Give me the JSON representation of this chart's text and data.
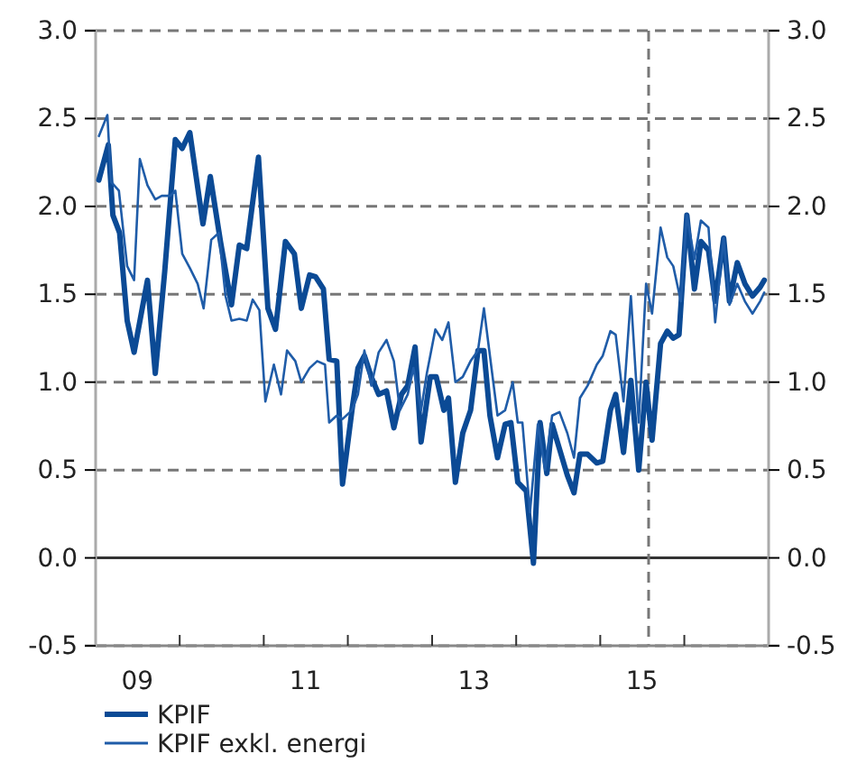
{
  "chart_data": {
    "type": "line",
    "xlim": [
      "2009-01-01",
      "2017-01-01"
    ],
    "xticks": [
      {
        "value": "2009-01-01",
        "label": null
      },
      {
        "value": "2009-07-01",
        "label": "09"
      },
      {
        "value": "2010-01-01",
        "label": null
      },
      {
        "value": "2011-01-01",
        "label": null
      },
      {
        "value": "2011-07-01",
        "label": "11"
      },
      {
        "value": "2012-01-01",
        "label": null
      },
      {
        "value": "2013-01-01",
        "label": null
      },
      {
        "value": "2013-07-01",
        "label": "13"
      },
      {
        "value": "2014-01-01",
        "label": null
      },
      {
        "value": "2015-01-01",
        "label": null
      },
      {
        "value": "2015-07-01",
        "label": "15"
      },
      {
        "value": "2016-01-01",
        "label": null
      },
      {
        "value": "2017-01-01",
        "label": null
      }
    ],
    "ylim": [
      -0.5,
      3
    ],
    "yticks": [
      {
        "value": -0.5,
        "label": "-0.5"
      },
      {
        "value": 0,
        "label": "0.0"
      },
      {
        "value": 0.5,
        "label": "0.5"
      },
      {
        "value": 1,
        "label": "1.0"
      },
      {
        "value": 1.5,
        "label": "1.5"
      },
      {
        "value": 2,
        "label": "2.0"
      },
      {
        "value": 2.5,
        "label": "2.5"
      },
      {
        "value": 3,
        "label": "3.0"
      }
    ],
    "y2lim": [
      -0.5,
      3
    ],
    "y2ticks": [
      {
        "value": -0.5,
        "label": "-0.5"
      },
      {
        "value": 0,
        "label": "0.0"
      },
      {
        "value": 0.5,
        "label": "0.5"
      },
      {
        "value": 1,
        "label": "1.0"
      },
      {
        "value": 1.5,
        "label": "1.5"
      },
      {
        "value": 2,
        "label": "2.0"
      },
      {
        "value": 2.5,
        "label": "2.5"
      },
      {
        "value": 3,
        "label": "3.0"
      }
    ],
    "grid": "y",
    "legend": "bottom left",
    "line_style": "solid",
    "ref_lines": [
      {
        "axis": "y",
        "value": 0,
        "color": "#333333",
        "line_style": "solid"
      },
      {
        "axis": "x",
        "value": "2015-07-30",
        "color": "#777777",
        "line_style": "dashed"
      }
    ],
    "series": [
      {
        "name": "KPIF",
        "color": "#0b4a95",
        "x": [
          "2009-01-15",
          "2009-02-25",
          "2009-03-17",
          "2009-04-15",
          "2009-05-18",
          "2009-06-17",
          "2009-08-14",
          "2009-09-17",
          "2009-10-28",
          "2009-12-13",
          "2010-01-12",
          "2010-02-14",
          "2010-04-12",
          "2010-05-14",
          "2010-06-27",
          "2010-08-14",
          "2010-09-17",
          "2010-10-19",
          "2010-12-09",
          "2011-01-19",
          "2011-02-21",
          "2011-04-05",
          "2011-05-14",
          "2011-06-13",
          "2011-07-19",
          "2011-08-14",
          "2011-09-17",
          "2011-10-12",
          "2011-11-14",
          "2011-12-09",
          "2012-01-19",
          "2012-02-14",
          "2012-03-13",
          "2012-04-12",
          "2012-05-14",
          "2012-06-17",
          "2012-07-19",
          "2012-08-21",
          "2012-09-17",
          "2012-10-19",
          "2012-11-14",
          "2012-12-24",
          "2013-01-19",
          "2013-02-21",
          "2013-03-13",
          "2013-04-12",
          "2013-05-14",
          "2013-06-17",
          "2013-07-19",
          "2013-08-14",
          "2013-09-09",
          "2013-10-12",
          "2013-11-14",
          "2013-12-09",
          "2014-01-08",
          "2014-02-14",
          "2014-03-17",
          "2014-04-15",
          "2014-05-14",
          "2014-06-06",
          "2014-07-08",
          "2014-08-11",
          "2014-09-09",
          "2014-10-05",
          "2014-11-07",
          "2014-12-17",
          "2015-01-12",
          "2015-02-14",
          "2015-03-09",
          "2015-04-12",
          "2015-05-14",
          "2015-06-17",
          "2015-07-19",
          "2015-08-14",
          "2015-09-20",
          "2015-10-19",
          "2015-11-14",
          "2015-12-09",
          "2016-01-12",
          "2016-02-14",
          "2016-03-13",
          "2016-04-15",
          "2016-05-14",
          "2016-06-20",
          "2016-07-15",
          "2016-08-18",
          "2016-09-20",
          "2016-10-23",
          "2016-11-25",
          "2016-12-13"
        ],
        "values": [
          2.15,
          2.35,
          1.95,
          1.85,
          1.35,
          1.17,
          1.58,
          1.05,
          1.63,
          2.38,
          2.33,
          2.42,
          1.9,
          2.17,
          1.8,
          1.44,
          1.78,
          1.76,
          2.28,
          1.42,
          1.3,
          1.8,
          1.73,
          1.42,
          1.61,
          1.6,
          1.53,
          1.13,
          1.12,
          0.42,
          0.84,
          1.08,
          1.15,
          1.03,
          0.93,
          0.95,
          0.74,
          0.93,
          0.98,
          1.2,
          0.66,
          1.03,
          1.03,
          0.84,
          0.91,
          0.43,
          0.71,
          0.84,
          1.18,
          1.18,
          0.81,
          0.57,
          0.76,
          0.77,
          0.43,
          0.38,
          -0.03,
          0.77,
          0.48,
          0.76,
          0.62,
          0.47,
          0.37,
          0.59,
          0.59,
          0.54,
          0.55,
          0.84,
          0.93,
          0.6,
          1.01,
          0.5,
          1,
          0.67,
          1.22,
          1.29,
          1.25,
          1.27,
          1.95,
          1.53,
          1.8,
          1.75,
          1.46,
          1.82,
          1.46,
          1.68,
          1.56,
          1.49,
          1.54,
          1.58
        ]
      },
      {
        "name": "KPIF exkl. energi",
        "color": "#1f5ca8",
        "x": [
          "2009-01-15",
          "2009-02-21",
          "2009-03-09",
          "2009-04-12",
          "2009-05-18",
          "2009-06-17",
          "2009-07-12",
          "2009-08-14",
          "2009-09-17",
          "2009-10-15",
          "2009-11-21",
          "2009-12-13",
          "2010-01-12",
          "2010-02-14",
          "2010-03-20",
          "2010-04-15",
          "2010-05-18",
          "2010-06-20",
          "2010-07-19",
          "2010-08-14",
          "2010-09-17",
          "2010-10-19",
          "2010-11-14",
          "2010-12-13",
          "2011-01-08",
          "2011-02-14",
          "2011-03-17",
          "2011-04-12",
          "2011-05-18",
          "2011-06-13",
          "2011-07-19",
          "2011-08-21",
          "2011-09-24",
          "2011-10-12",
          "2011-11-14",
          "2011-12-09",
          "2012-01-19",
          "2012-02-14",
          "2012-03-13",
          "2012-04-12",
          "2012-05-14",
          "2012-06-17",
          "2012-07-19",
          "2012-08-14",
          "2012-09-17",
          "2012-10-12",
          "2012-11-14",
          "2012-12-09",
          "2013-01-15",
          "2013-02-14",
          "2013-03-13",
          "2013-04-12",
          "2013-05-14",
          "2013-06-17",
          "2013-07-19",
          "2013-08-14",
          "2013-09-09",
          "2013-10-12",
          "2013-11-14",
          "2013-12-17",
          "2014-01-08",
          "2014-01-28",
          "2014-03-02",
          "2014-04-05",
          "2014-05-07",
          "2014-06-06",
          "2014-07-08",
          "2014-08-11",
          "2014-09-09",
          "2014-10-05",
          "2014-11-07",
          "2014-12-17",
          "2015-01-12",
          "2015-02-14",
          "2015-03-09",
          "2015-04-12",
          "2015-05-14",
          "2015-06-17",
          "2015-07-19",
          "2015-08-14",
          "2015-09-20",
          "2015-10-19",
          "2015-11-14",
          "2015-12-17",
          "2016-01-12",
          "2016-02-14",
          "2016-03-13",
          "2016-04-15",
          "2016-05-14",
          "2016-06-20",
          "2016-07-15",
          "2016-08-18",
          "2016-09-20",
          "2016-10-23",
          "2016-11-25",
          "2016-12-13"
        ],
        "values": [
          2.4,
          2.52,
          2.14,
          2.09,
          1.66,
          1.58,
          2.27,
          2.12,
          2.04,
          2.06,
          2.06,
          2.09,
          1.73,
          1.65,
          1.56,
          1.42,
          1.81,
          1.85,
          1.49,
          1.35,
          1.36,
          1.35,
          1.47,
          1.41,
          0.89,
          1.1,
          0.93,
          1.18,
          1.12,
          1,
          1.08,
          1.12,
          1.1,
          0.77,
          0.81,
          0.79,
          0.84,
          0.93,
          1.18,
          0.98,
          1.17,
          1.24,
          1.12,
          0.84,
          0.93,
          1.08,
          0.84,
          1.05,
          1.3,
          1.24,
          1.34,
          1,
          1.03,
          1.12,
          1.18,
          1.42,
          1.15,
          0.81,
          0.84,
          1,
          0.77,
          0.77,
          0.26,
          0.76,
          0.5,
          0.81,
          0.83,
          0.71,
          0.57,
          0.91,
          0.98,
          1.1,
          1.15,
          1.29,
          1.27,
          0.89,
          1.49,
          0.77,
          1.56,
          1.39,
          1.88,
          1.71,
          1.66,
          1.46,
          1.95,
          1.7,
          1.92,
          1.88,
          1.34,
          1.82,
          1.44,
          1.56,
          1.46,
          1.39,
          1.46,
          1.51
        ]
      }
    ]
  }
}
